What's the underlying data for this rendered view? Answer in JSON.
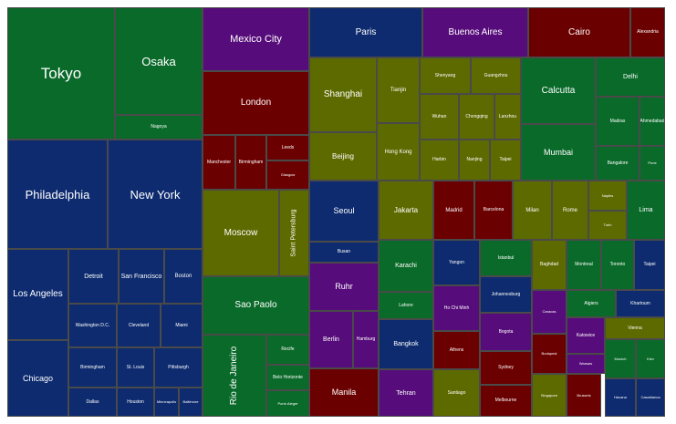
{
  "palette": {
    "blue": "#0d2b6e",
    "green": "#0a6a2a",
    "purple": "#560c7a",
    "maroon": "#6b0000",
    "olive": "#5d6a00"
  },
  "chart_data": {
    "type": "treemap",
    "title": "",
    "nodes": [
      {
        "name": "Tokyo",
        "color": "green"
      },
      {
        "name": "Osaka",
        "color": "green"
      },
      {
        "name": "Nagoya",
        "color": "green"
      },
      {
        "name": "Philadelphia",
        "color": "blue"
      },
      {
        "name": "New York",
        "color": "blue"
      },
      {
        "name": "Los Angeles",
        "color": "blue"
      },
      {
        "name": "Detroit",
        "color": "blue"
      },
      {
        "name": "San Francisco",
        "color": "blue"
      },
      {
        "name": "Boston",
        "color": "blue"
      },
      {
        "name": "Washington D.C.",
        "color": "blue"
      },
      {
        "name": "Cleveland",
        "color": "blue"
      },
      {
        "name": "Miami",
        "color": "blue"
      },
      {
        "name": "Chicago",
        "color": "blue"
      },
      {
        "name": "Birmingham",
        "color": "blue"
      },
      {
        "name": "St. Louis",
        "color": "blue"
      },
      {
        "name": "Pittsburgh",
        "color": "blue"
      },
      {
        "name": "Dallas",
        "color": "blue"
      },
      {
        "name": "Houston",
        "color": "blue"
      },
      {
        "name": "Minneapolis",
        "color": "blue"
      },
      {
        "name": "Baltimore",
        "color": "blue"
      },
      {
        "name": "Mexico City",
        "color": "purple"
      },
      {
        "name": "London",
        "color": "maroon"
      },
      {
        "name": "Manchester",
        "color": "maroon"
      },
      {
        "name": "Birmingham",
        "color": "maroon"
      },
      {
        "name": "Leeds",
        "color": "maroon"
      },
      {
        "name": "Glasgow",
        "color": "maroon"
      },
      {
        "name": "Moscow",
        "color": "olive"
      },
      {
        "name": "Saint Petersburg",
        "color": "olive"
      },
      {
        "name": "Sao Paolo",
        "color": "green"
      },
      {
        "name": "Rio de Janeiro",
        "color": "green"
      },
      {
        "name": "Recife",
        "color": "green"
      },
      {
        "name": "Belo Horizonte",
        "color": "green"
      },
      {
        "name": "Porto Alegre",
        "color": "green"
      },
      {
        "name": "Paris",
        "color": "blue"
      },
      {
        "name": "Buenos Aires",
        "color": "purple"
      },
      {
        "name": "Cairo",
        "color": "maroon"
      },
      {
        "name": "Alexandria",
        "color": "maroon"
      },
      {
        "name": "Shanghai",
        "color": "olive"
      },
      {
        "name": "Tianjin",
        "color": "olive"
      },
      {
        "name": "Shenyang",
        "color": "olive"
      },
      {
        "name": "Guangzhou",
        "color": "olive"
      },
      {
        "name": "Wuhan",
        "color": "olive"
      },
      {
        "name": "Chongqing",
        "color": "olive"
      },
      {
        "name": "Lanzhou",
        "color": "olive"
      },
      {
        "name": "Beijing",
        "color": "olive"
      },
      {
        "name": "Hong Kong",
        "color": "olive"
      },
      {
        "name": "Harbin",
        "color": "olive"
      },
      {
        "name": "Nanjing",
        "color": "olive"
      },
      {
        "name": "Taipei",
        "color": "olive"
      },
      {
        "name": "Calcutta",
        "color": "green"
      },
      {
        "name": "Delhi",
        "color": "green"
      },
      {
        "name": "Madras",
        "color": "green"
      },
      {
        "name": "Ahmedabad",
        "color": "green"
      },
      {
        "name": "Mumbai",
        "color": "green"
      },
      {
        "name": "Bangalore",
        "color": "green"
      },
      {
        "name": "Pune",
        "color": "green"
      },
      {
        "name": "Seoul",
        "color": "blue"
      },
      {
        "name": "Busan",
        "color": "blue"
      },
      {
        "name": "Jakarta",
        "color": "olive"
      },
      {
        "name": "Madrid",
        "color": "maroon"
      },
      {
        "name": "Barcelona",
        "color": "maroon"
      },
      {
        "name": "Milan",
        "color": "olive"
      },
      {
        "name": "Rome",
        "color": "olive"
      },
      {
        "name": "Naples",
        "color": "olive"
      },
      {
        "name": "Turin",
        "color": "olive"
      },
      {
        "name": "Lima",
        "color": "green"
      },
      {
        "name": "Ruhr",
        "color": "purple"
      },
      {
        "name": "Berlin",
        "color": "purple"
      },
      {
        "name": "Hamburg",
        "color": "purple"
      },
      {
        "name": "Manila",
        "color": "maroon"
      },
      {
        "name": "Karachi",
        "color": "green"
      },
      {
        "name": "Lahore",
        "color": "green"
      },
      {
        "name": "Bangkok",
        "color": "blue"
      },
      {
        "name": "Yangon",
        "color": "blue"
      },
      {
        "name": "Ho Chi Minh",
        "color": "purple"
      },
      {
        "name": "Athens",
        "color": "maroon"
      },
      {
        "name": "Istanbul",
        "color": "green"
      },
      {
        "name": "Johannesburg",
        "color": "blue"
      },
      {
        "name": "Bogota",
        "color": "purple"
      },
      {
        "name": "Sydney",
        "color": "maroon"
      },
      {
        "name": "Melbourne",
        "color": "maroon"
      },
      {
        "name": "Tehran",
        "color": "purple"
      },
      {
        "name": "Santiago",
        "color": "olive"
      },
      {
        "name": "Baghdad",
        "color": "olive"
      },
      {
        "name": "Montreal",
        "color": "green"
      },
      {
        "name": "Toronto",
        "color": "green"
      },
      {
        "name": "Taipei",
        "color": "blue"
      },
      {
        "name": "Algiers",
        "color": "green"
      },
      {
        "name": "Khartoum",
        "color": "blue"
      },
      {
        "name": "Caracas",
        "color": "purple"
      },
      {
        "name": "Budapest",
        "color": "maroon"
      },
      {
        "name": "Singapore",
        "color": "olive"
      },
      {
        "name": "Brussels",
        "color": "maroon"
      },
      {
        "name": "Katowice",
        "color": "purple"
      },
      {
        "name": "Warsaw",
        "color": "purple"
      },
      {
        "name": "Vienna",
        "color": "olive"
      },
      {
        "name": "Munich",
        "color": "green"
      },
      {
        "name": "Kiev",
        "color": "green"
      },
      {
        "name": "Havana",
        "color": "blue"
      },
      {
        "name": "Casablanca",
        "color": "blue"
      }
    ]
  }
}
